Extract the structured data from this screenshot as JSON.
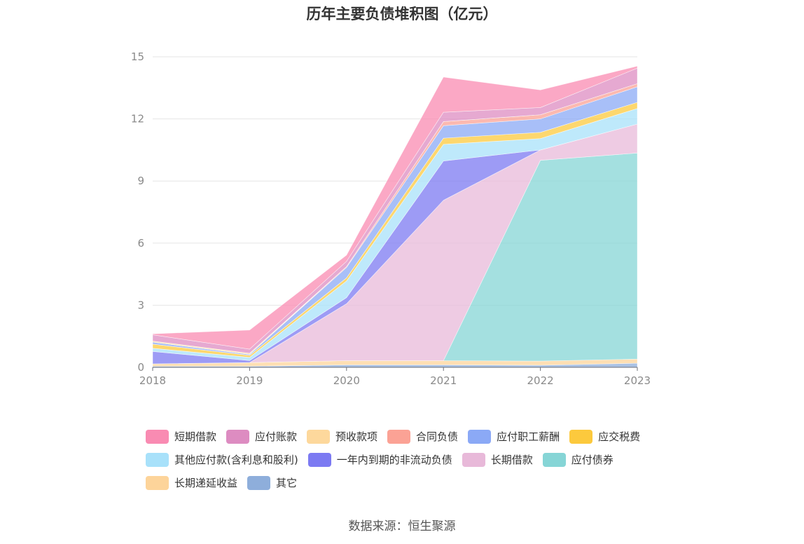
{
  "chart_data": {
    "type": "area",
    "stacked": true,
    "title": "历年主要负债堆积图（亿元）",
    "x": [
      "2018",
      "2019",
      "2020",
      "2021",
      "2022",
      "2023"
    ],
    "ylim": [
      0,
      15
    ],
    "yticks": [
      "0",
      "3",
      "6",
      "9",
      "12",
      "15"
    ],
    "grid": true,
    "legend_position": "bottom",
    "series": [
      {
        "name": "其它",
        "color": "#8eaedb",
        "values": [
          0.05,
          0.05,
          0.12,
          0.12,
          0.1,
          0.2
        ]
      },
      {
        "name": "长期递延收益",
        "color": "#fdd49a",
        "values": [
          0.12,
          0.18,
          0.2,
          0.2,
          0.2,
          0.2
        ]
      },
      {
        "name": "应付债券",
        "color": "#86d5d6",
        "values": [
          0,
          0,
          0,
          0,
          9.7,
          9.95
        ]
      },
      {
        "name": "长期借款",
        "color": "#e8b9d9",
        "values": [
          0,
          0,
          2.75,
          7.75,
          0.5,
          1.4
        ]
      },
      {
        "name": "一年内到期的非流动负债",
        "color": "#7c7af2",
        "values": [
          0.6,
          0.1,
          0.3,
          1.9,
          0,
          0
        ]
      },
      {
        "name": "其他应付款(含利息和股利)",
        "color": "#a8e1fa",
        "values": [
          0.15,
          0.15,
          0.8,
          0.8,
          0.55,
          0.75
        ]
      },
      {
        "name": "应交税费",
        "color": "#fcc93d",
        "values": [
          0.2,
          0.1,
          0.15,
          0.3,
          0.3,
          0.3
        ]
      },
      {
        "name": "应付职工薪酬",
        "color": "#8ba9f6",
        "values": [
          0.1,
          0.05,
          0.5,
          0.6,
          0.65,
          0.75
        ]
      },
      {
        "name": "合同负债",
        "color": "#fba295",
        "values": [
          0,
          0,
          0.05,
          0.2,
          0.2,
          0.15
        ]
      },
      {
        "name": "预收款项",
        "color": "#fdd89c",
        "values": [
          0.05,
          0.05,
          0,
          0,
          0,
          0
        ]
      },
      {
        "name": "应付账款",
        "color": "#dd8cc1",
        "values": [
          0.3,
          0.2,
          0.25,
          0.45,
          0.35,
          0.75
        ]
      },
      {
        "name": "短期借款",
        "color": "#f98bb2",
        "values": [
          0.05,
          0.92,
          0.3,
          1.7,
          0.85,
          0.1
        ]
      }
    ],
    "legend_order": [
      "短期借款",
      "应付账款",
      "预收款项",
      "合同负债",
      "应付职工薪酬",
      "应交税费",
      "其他应付款(含利息和股利)",
      "一年内到期的非流动负债",
      "长期借款",
      "应付债券",
      "长期递延收益",
      "其它"
    ]
  },
  "source": "数据来源：恒生聚源"
}
